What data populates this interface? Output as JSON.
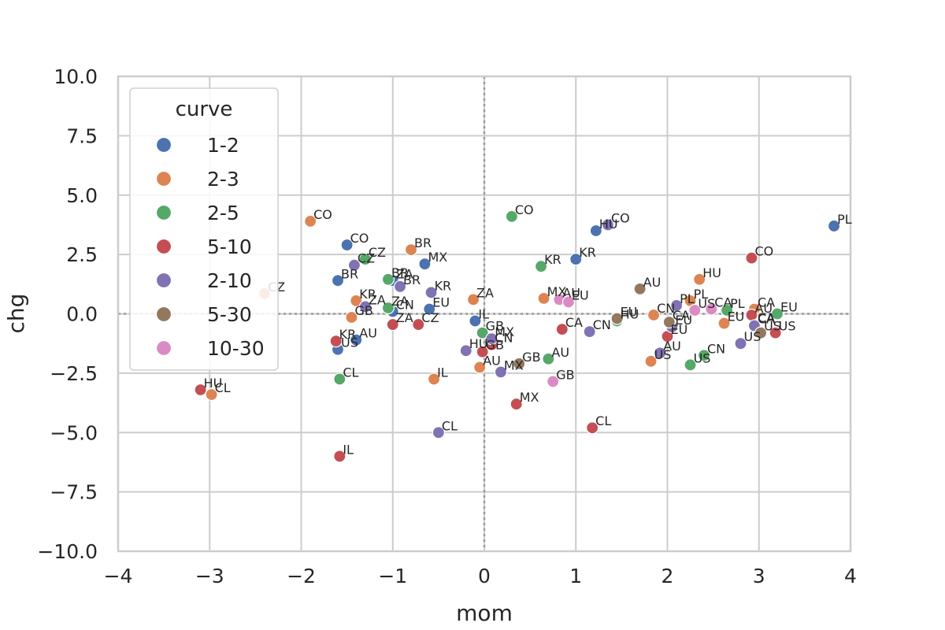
{
  "chart_data": {
    "type": "scatter",
    "xlabel": "mom",
    "ylabel": "chg",
    "xlim": [
      -4,
      4
    ],
    "ylim": [
      -10,
      10
    ],
    "x_ticks": [
      -4,
      -3,
      -2,
      -1,
      0,
      1,
      2,
      3,
      4
    ],
    "x_tick_labels": [
      "−4",
      "−3",
      "−2",
      "−1",
      "0",
      "1",
      "2",
      "3",
      "4"
    ],
    "y_ticks": [
      10,
      7.5,
      5,
      2.5,
      0,
      -2.5,
      -5,
      -7.5,
      -10
    ],
    "y_tick_labels": [
      "10.0",
      "7.5",
      "5.0",
      "2.5",
      "0.0",
      "−2.5",
      "−5.0",
      "−7.5",
      "−10.0"
    ],
    "grid": true,
    "reference_lines": {
      "x": 0,
      "y": 0,
      "style": "dotted"
    },
    "legend": {
      "title": "curve",
      "placement": "upper-left"
    },
    "series": [
      {
        "name": "1-2",
        "color": "#4c72b0",
        "points": [
          {
            "x": 3.82,
            "y": 3.7,
            "label": "PL"
          },
          {
            "x": 1.22,
            "y": 3.5,
            "label": "HU"
          },
          {
            "x": 1.0,
            "y": 2.3,
            "label": "KR"
          },
          {
            "x": -1.5,
            "y": 2.9,
            "label": "CO"
          },
          {
            "x": -0.65,
            "y": 2.1,
            "label": "MX"
          },
          {
            "x": -1.6,
            "y": 1.4,
            "label": "BR"
          },
          {
            "x": -1.0,
            "y": 1.4,
            "label": "ZA"
          },
          {
            "x": -1.0,
            "y": 0.1,
            "label": "CN"
          },
          {
            "x": -0.6,
            "y": 0.2,
            "label": "EU"
          },
          {
            "x": -0.1,
            "y": -0.3,
            "label": "IL"
          },
          {
            "x": -1.4,
            "y": -1.1,
            "label": "AU"
          },
          {
            "x": -1.6,
            "y": -1.5,
            "label": "US"
          }
        ]
      },
      {
        "name": "2-3",
        "color": "#dd8452",
        "points": [
          {
            "x": -1.9,
            "y": 3.9,
            "label": "CO"
          },
          {
            "x": -0.8,
            "y": 2.7,
            "label": "BR"
          },
          {
            "x": -2.4,
            "y": 0.85,
            "label": "CZ"
          },
          {
            "x": -1.4,
            "y": 0.55,
            "label": "KR"
          },
          {
            "x": -1.45,
            "y": -0.15,
            "label": "GB"
          },
          {
            "x": -0.12,
            "y": 0.6,
            "label": "ZA"
          },
          {
            "x": 0.65,
            "y": 0.65,
            "label": "MX"
          },
          {
            "x": -0.05,
            "y": -2.25,
            "label": "AU"
          },
          {
            "x": -0.55,
            "y": -2.75,
            "label": "IL"
          },
          {
            "x": -2.98,
            "y": -3.4,
            "label": "CL"
          },
          {
            "x": 2.35,
            "y": 1.45,
            "label": "HU"
          },
          {
            "x": 2.25,
            "y": 0.55,
            "label": "PL"
          },
          {
            "x": 2.95,
            "y": 0.2,
            "label": "CA"
          },
          {
            "x": 1.85,
            "y": -0.05,
            "label": "CN"
          },
          {
            "x": 2.62,
            "y": -0.4,
            "label": "EU"
          },
          {
            "x": 1.82,
            "y": -2.0,
            "label": "US"
          }
        ]
      },
      {
        "name": "2-5",
        "color": "#55a868",
        "points": [
          {
            "x": 0.3,
            "y": 4.1,
            "label": "CO"
          },
          {
            "x": 0.62,
            "y": 2.0,
            "label": "KR"
          },
          {
            "x": -1.3,
            "y": 2.3,
            "label": "CZ"
          },
          {
            "x": -1.05,
            "y": 1.45,
            "label": "BR"
          },
          {
            "x": -1.05,
            "y": 0.25,
            "label": "ZA"
          },
          {
            "x": -1.58,
            "y": -2.75,
            "label": "CL"
          },
          {
            "x": -0.02,
            "y": -0.8,
            "label": "GB"
          },
          {
            "x": 0.7,
            "y": -1.9,
            "label": "AU"
          },
          {
            "x": 1.45,
            "y": -0.3,
            "label": "HU"
          },
          {
            "x": 2.65,
            "y": 0.15,
            "label": "PL"
          },
          {
            "x": 3.2,
            "y": 0.0,
            "label": "EU"
          },
          {
            "x": 2.4,
            "y": -1.75,
            "label": "CN"
          },
          {
            "x": 2.25,
            "y": -2.15,
            "label": "US"
          },
          {
            "x": 2.95,
            "y": -0.45,
            "label": "CA"
          }
        ]
      },
      {
        "name": "5-10",
        "color": "#c44e52",
        "points": [
          {
            "x": 2.92,
            "y": 2.35,
            "label": "CO"
          },
          {
            "x": -1.0,
            "y": -0.45,
            "label": "ZA"
          },
          {
            "x": -0.72,
            "y": -0.45,
            "label": "CZ"
          },
          {
            "x": -1.62,
            "y": -1.15,
            "label": "KR"
          },
          {
            "x": -3.1,
            "y": -3.2,
            "label": "HU"
          },
          {
            "x": -1.58,
            "y": -6.0,
            "label": "IL"
          },
          {
            "x": 0.85,
            "y": -0.65,
            "label": "CA"
          },
          {
            "x": 0.08,
            "y": -1.3,
            "label": "CN"
          },
          {
            "x": -0.02,
            "y": -1.6,
            "label": "GB"
          },
          {
            "x": 0.35,
            "y": -3.8,
            "label": "MX"
          },
          {
            "x": 1.18,
            "y": -4.8,
            "label": "CL"
          },
          {
            "x": 2.0,
            "y": -0.95,
            "label": "EU"
          },
          {
            "x": 2.92,
            "y": -0.05,
            "label": "AU"
          },
          {
            "x": 3.18,
            "y": -0.8,
            "label": "US"
          }
        ]
      },
      {
        "name": "2-10",
        "color": "#8172b3",
        "points": [
          {
            "x": 1.35,
            "y": 3.75,
            "label": "CO"
          },
          {
            "x": -1.42,
            "y": 2.05,
            "label": "CZ"
          },
          {
            "x": -0.92,
            "y": 1.15,
            "label": "BR"
          },
          {
            "x": -0.58,
            "y": 0.9,
            "label": "KR"
          },
          {
            "x": -1.3,
            "y": 0.3,
            "label": "ZA"
          },
          {
            "x": -0.5,
            "y": -5.0,
            "label": "CL"
          },
          {
            "x": -0.2,
            "y": -1.55,
            "label": "HU"
          },
          {
            "x": 0.18,
            "y": -2.45,
            "label": "MX"
          },
          {
            "x": 0.08,
            "y": -1.05,
            "label": "MX"
          },
          {
            "x": 1.15,
            "y": -0.75,
            "label": "CN"
          },
          {
            "x": 2.1,
            "y": 0.35,
            "label": "PL"
          },
          {
            "x": 2.05,
            "y": -0.55,
            "label": "EU"
          },
          {
            "x": 1.92,
            "y": -1.65,
            "label": "AU"
          },
          {
            "x": 2.8,
            "y": -1.25,
            "label": "US"
          },
          {
            "x": 2.95,
            "y": -0.5,
            "label": "CA"
          }
        ]
      },
      {
        "name": "5-30",
        "color": "#937860",
        "points": [
          {
            "x": 1.7,
            "y": 1.05,
            "label": "AU"
          },
          {
            "x": 1.45,
            "y": -0.2,
            "label": "EU"
          },
          {
            "x": 2.02,
            "y": -0.35,
            "label": "CA"
          },
          {
            "x": 0.38,
            "y": -2.1,
            "label": "GB"
          },
          {
            "x": 3.02,
            "y": -0.8,
            "label": "US"
          }
        ]
      },
      {
        "name": "10-30",
        "color": "#da8bc3",
        "points": [
          {
            "x": 0.82,
            "y": 0.6,
            "label": "AU"
          },
          {
            "x": 0.92,
            "y": 0.5,
            "label": "EU"
          },
          {
            "x": 2.3,
            "y": 0.15,
            "label": "US"
          },
          {
            "x": 2.48,
            "y": 0.2,
            "label": "CA"
          },
          {
            "x": 0.75,
            "y": -2.85,
            "label": "GB"
          }
        ]
      }
    ]
  }
}
